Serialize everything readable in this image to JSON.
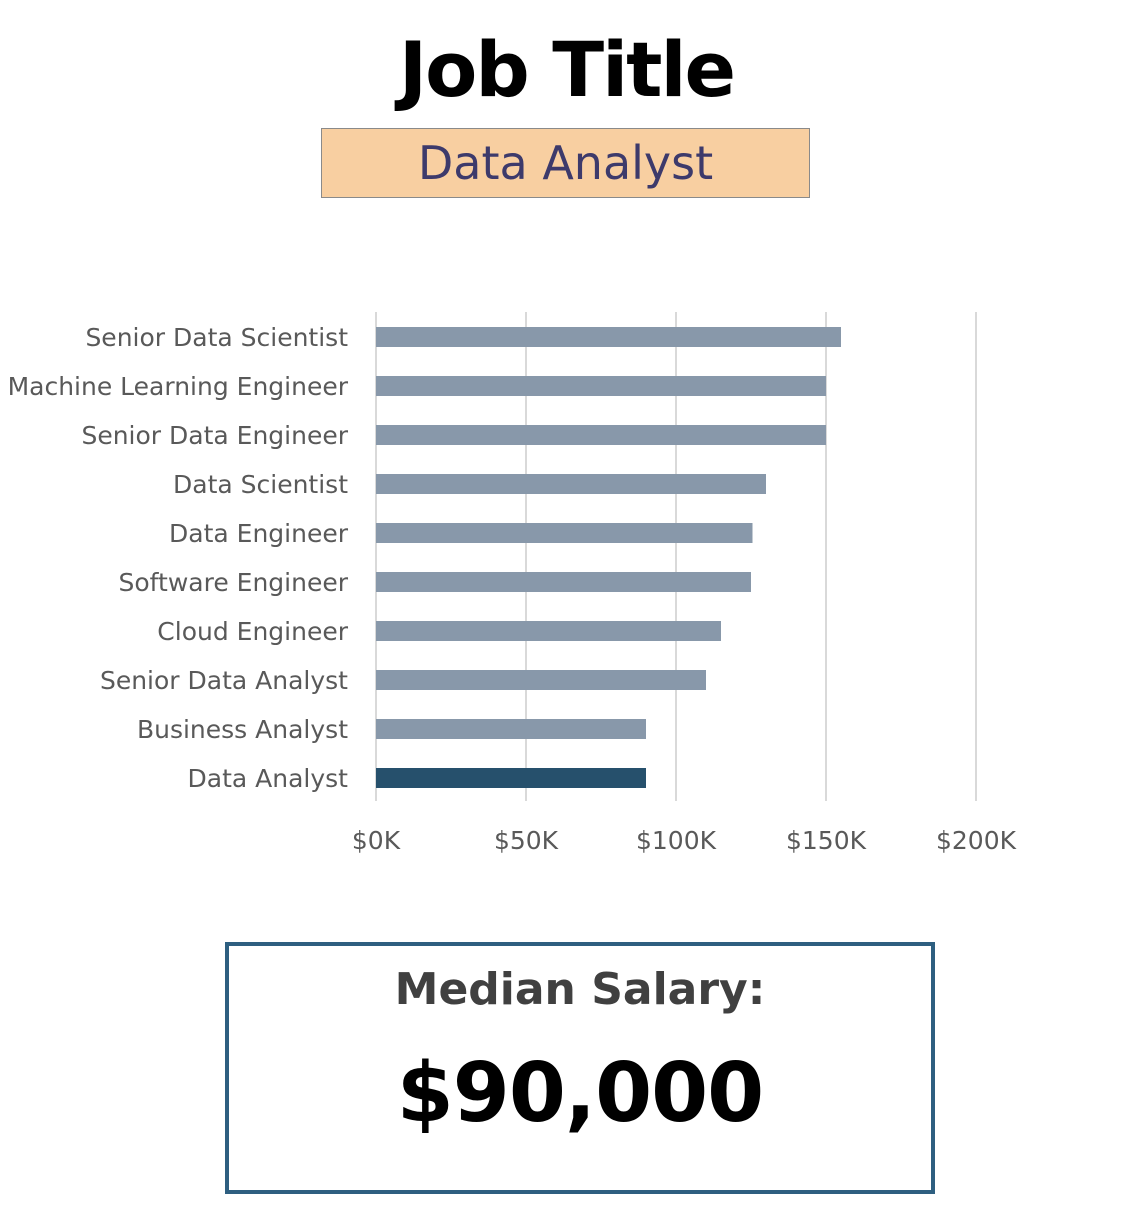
{
  "header": {
    "title": "Job Title",
    "selected_job": "Data Analyst"
  },
  "chart_data": {
    "type": "bar",
    "orientation": "horizontal",
    "categories": [
      "Senior Data Scientist",
      "Machine Learning Engineer",
      "Senior Data Engineer",
      "Data Scientist",
      "Data Engineer",
      "Software Engineer",
      "Cloud Engineer",
      "Senior Data Analyst",
      "Business Analyst",
      "Data Analyst"
    ],
    "values": [
      155000,
      150000,
      150000,
      130000,
      125500,
      125000,
      115000,
      110000,
      90000,
      90000
    ],
    "highlight": "Data Analyst",
    "xlim": [
      0,
      200000
    ],
    "x_ticks": [
      0,
      50000,
      100000,
      150000,
      200000
    ],
    "x_tick_labels": [
      "$0K",
      "$50K",
      "$100K",
      "$150K",
      "$200K"
    ],
    "grid": "vertical",
    "colors": {
      "bar": "#8898aa",
      "highlight_bar": "#26506c",
      "grid": "#d9d9d9"
    },
    "title": "",
    "xlabel": "",
    "ylabel": ""
  },
  "summary": {
    "label": "Median Salary:",
    "value": "$90,000"
  }
}
